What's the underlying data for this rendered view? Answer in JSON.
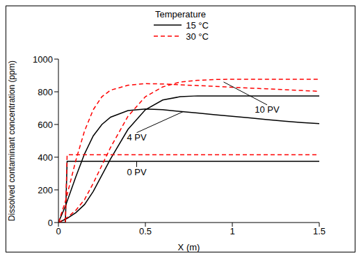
{
  "chart_data": {
    "type": "line",
    "x_label": "X (m)",
    "y_label": "Dissolved contaminant concentration (ppm)",
    "legend_title": "Temperature",
    "legend": "top",
    "xlim": [
      0,
      1.5
    ],
    "xticks": [
      0,
      0.5,
      1,
      1.5
    ],
    "ylim": [
      0,
      1000
    ],
    "yticks": [
      0,
      200,
      400,
      600,
      800,
      1000
    ],
    "x": [
      0,
      0.04,
      0.05,
      0.1,
      0.15,
      0.2,
      0.25,
      0.3,
      0.4,
      0.5,
      0.6,
      0.7,
      0.8,
      0.9,
      1,
      1.1,
      1.2,
      1.3,
      1.4,
      1.5
    ],
    "series": [
      {
        "name": "15 °C",
        "color": "#000000",
        "line_style": "solid",
        "curves": [
          {
            "label": "0 PV",
            "values": [
              0,
              0,
              375,
              375,
              375,
              375,
              375,
              375,
              375,
              375,
              375,
              375,
              375,
              375,
              375,
              375,
              375,
              375,
              375,
              375
            ]
          },
          {
            "label": "4 PV",
            "values": [
              0,
              100,
              130,
              280,
              420,
              530,
              600,
              645,
              685,
              695,
              690,
              680,
              670,
              660,
              650,
              640,
              630,
              620,
              612,
              605
            ]
          },
          {
            "label": "10 PV",
            "values": [
              0,
              20,
              25,
              60,
              110,
              190,
              290,
              390,
              570,
              690,
              750,
              770,
              775,
              775,
              775,
              775,
              775,
              775,
              775,
              775
            ]
          }
        ]
      },
      {
        "name": "30 °C",
        "color": "#ff0000",
        "line_style": "dashed",
        "curves": [
          {
            "label": "0 PV",
            "values": [
              0,
              0,
              415,
              415,
              415,
              415,
              415,
              415,
              415,
              415,
              415,
              415,
              415,
              415,
              415,
              415,
              415,
              415,
              415,
              415
            ]
          },
          {
            "label": "4 PV",
            "values": [
              0,
              130,
              170,
              380,
              560,
              690,
              770,
              810,
              840,
              850,
              848,
              843,
              838,
              833,
              828,
              823,
              818,
              813,
              808,
              803
            ]
          },
          {
            "label": "10 PV",
            "values": [
              0,
              25,
              30,
              75,
              140,
              240,
              350,
              460,
              650,
              770,
              830,
              860,
              870,
              875,
              877,
              877,
              877,
              877,
              877,
              877
            ]
          }
        ]
      }
    ],
    "annotations": [
      {
        "text": "0 PV",
        "x": 0.45,
        "y": 310,
        "point": [
          0.45,
          375
        ]
      },
      {
        "text": "4 PV",
        "x": 0.45,
        "y": 520,
        "point": [
          0.72,
          680
        ]
      },
      {
        "text": "10 PV",
        "x": 1.2,
        "y": 690,
        "point": [
          0.95,
          860
        ]
      }
    ]
  }
}
